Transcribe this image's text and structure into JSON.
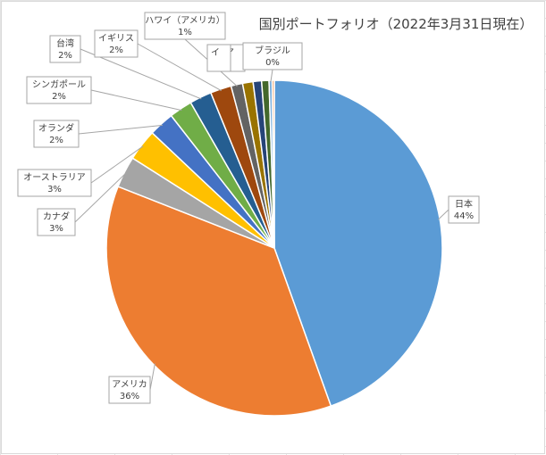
{
  "chart_data": {
    "type": "pie",
    "title": "国別ポートフォリオ（2022年3月31日現在）",
    "slices": [
      {
        "name": "日本",
        "label": "44%",
        "value": 44.0,
        "color": "#5b9bd5",
        "show_label": true
      },
      {
        "name": "アメリカ",
        "label": "36%",
        "value": 36.0,
        "color": "#ed7d31",
        "show_label": true
      },
      {
        "name": "カナダ",
        "label": "3%",
        "value": 3.0,
        "color": "#a5a5a5",
        "show_label": true
      },
      {
        "name": "オーストラリア",
        "label": "3%",
        "value": 3.0,
        "color": "#ffc000",
        "show_label": true
      },
      {
        "name": "オランダ",
        "label": "2%",
        "value": 2.4,
        "color": "#4472c4",
        "show_label": true
      },
      {
        "name": "シンガポール",
        "label": "2%",
        "value": 2.2,
        "color": "#70ad47",
        "show_label": true
      },
      {
        "name": "台湾",
        "label": "2%",
        "value": 2.1,
        "color": "#255e91",
        "show_label": true
      },
      {
        "name": "イギリス",
        "label": "2%",
        "value": 2.0,
        "color": "#9e480e",
        "show_label": true
      },
      {
        "name": "ハワイ（アメリカ）",
        "label": "1%",
        "value": 1.1,
        "color": "#636363",
        "show_label": true
      },
      {
        "name": "",
        "label": "",
        "value": 1.0,
        "color": "#997300",
        "show_label": false
      },
      {
        "name": "",
        "label": "",
        "value": 0.8,
        "color": "#264478",
        "show_label": false
      },
      {
        "name": "",
        "label": "",
        "value": 0.7,
        "color": "#43682b",
        "show_label": false
      },
      {
        "name": "ブラジル",
        "label": "0%",
        "value": 0.3,
        "color": "#7cafdd",
        "show_label": true
      },
      {
        "name": "",
        "label": "",
        "value": 0.2,
        "color": "#f1975a",
        "show_label": false
      }
    ],
    "partial_labels": [
      "イ",
      "ア"
    ],
    "legend": "none",
    "data_labels": "category-and-percent"
  },
  "colors": {
    "label_border": "#a6a6a6",
    "text": "#404040",
    "gridline": "#e4e4e4"
  }
}
